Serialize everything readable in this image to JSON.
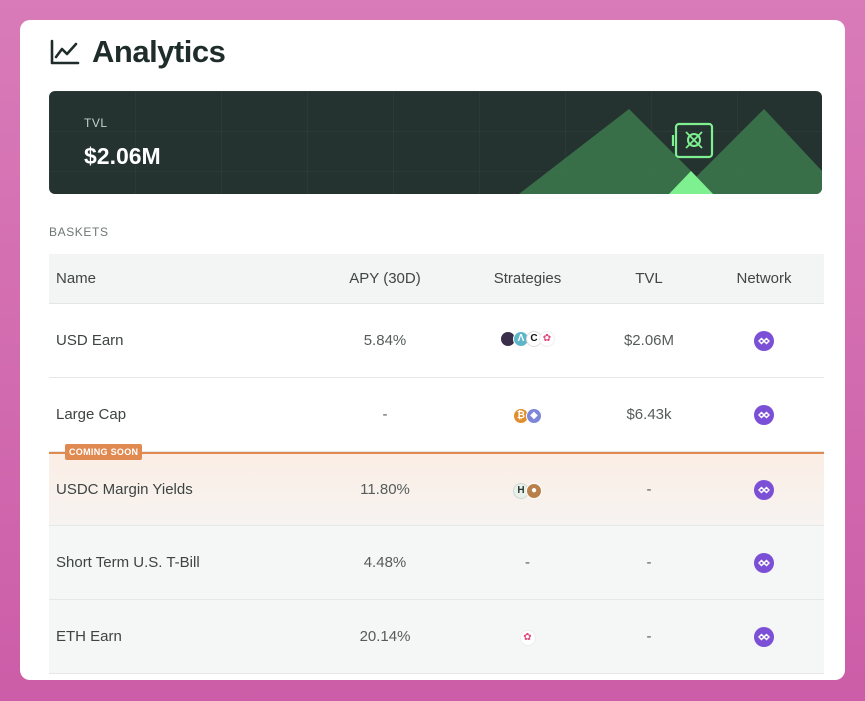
{
  "header": {
    "title": "Analytics",
    "icon": "chart-line-icon"
  },
  "banner": {
    "tvl_label": "TVL",
    "tvl_value": "$2.06M",
    "icon": "vault-icon"
  },
  "baskets": {
    "section_label": "BASKETS",
    "columns": [
      "Name",
      "APY (30D)",
      "Strategies",
      "TVL",
      "Network"
    ],
    "rows": [
      {
        "name": "USD Earn",
        "apy": "5.84%",
        "strategies_text": "",
        "tvl": "$2.06M",
        "badge": "",
        "strategy_icons": [
          "protocol-a-icon",
          "protocol-b-icon",
          "protocol-c-icon",
          "protocol-d-icon"
        ]
      },
      {
        "name": "Large Cap",
        "apy": "-",
        "strategies_text": "",
        "tvl": "$6.43k",
        "badge": "",
        "strategy_icons": [
          "bitcoin-icon",
          "ethereum-icon"
        ]
      },
      {
        "name": "USDC Margin Yields",
        "apy": "11.80%",
        "strategies_text": "",
        "tvl": "-",
        "badge": "COMING SOON",
        "strategy_icons": [
          "protocol-e-icon",
          "pancake-icon"
        ]
      },
      {
        "name": "Short Term U.S. T-Bill",
        "apy": "4.48%",
        "strategies_text": "-",
        "tvl": "-",
        "badge": "",
        "strategy_icons": []
      },
      {
        "name": "ETH Earn",
        "apy": "20.14%",
        "strategies_text": "",
        "tvl": "-",
        "badge": "",
        "strategy_icons": [
          "protocol-d-icon"
        ]
      }
    ],
    "network_icon": "polygon-icon"
  },
  "colors": {
    "accent_green": "#5fce74",
    "banner_bg": "#243330",
    "badge_orange": "#e08a52",
    "network_purple": "#7b4fd6"
  }
}
